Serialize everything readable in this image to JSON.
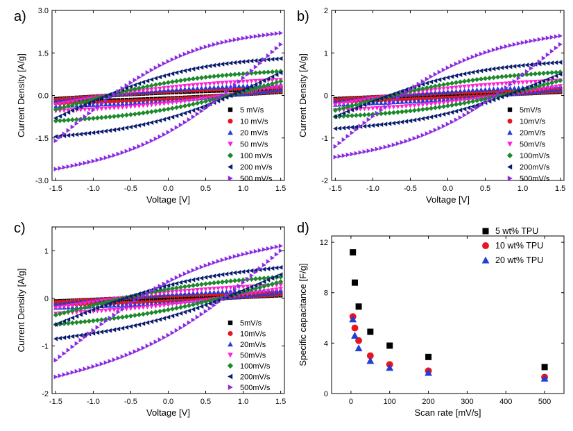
{
  "chart_data": [
    {
      "type": "scatter",
      "panel_label": "a)",
      "title": "",
      "xlabel": "Voltage [V]",
      "ylabel": "Current Density [A/g]",
      "xlim": [
        -1.55,
        1.55
      ],
      "ylim": [
        -3.0,
        3.0
      ],
      "xticks": [
        -1.5,
        -1.0,
        -0.5,
        0.0,
        0.5,
        1.0,
        1.5
      ],
      "xtick_labels": [
        "-1.5",
        "-1.0",
        "-0.5",
        "0.0",
        "0.5",
        "1.0",
        "1.5"
      ],
      "yticks": [
        -3.0,
        -1.5,
        0.0,
        1.5,
        3.0
      ],
      "ytick_labels": [
        "-3.0",
        "-1.5",
        "0.0",
        "1.5",
        "3.0"
      ],
      "legend_position": "bottom-right",
      "series": [
        {
          "name": "5 mV/s",
          "marker": "square",
          "color": "#000000",
          "upper_start": -0.12,
          "upper_end": 0.22,
          "lower_start": -0.22,
          "lower_end": 0.12,
          "slope": 0.05
        },
        {
          "name": "10 mV/s",
          "marker": "circle",
          "color": "#e8141e",
          "upper_start": -0.15,
          "upper_end": 0.28,
          "lower_start": -0.28,
          "lower_end": 0.15,
          "slope": 0.07
        },
        {
          "name": "20 mV/s",
          "marker": "triangle-up",
          "color": "#1f3fd6",
          "upper_start": -0.2,
          "upper_end": 0.38,
          "lower_start": -0.38,
          "lower_end": 0.2,
          "slope": 0.1
        },
        {
          "name": "50 mV/s",
          "marker": "triangle-down",
          "color": "#ff1fd2",
          "upper_start": -0.32,
          "upper_end": 0.55,
          "lower_start": -0.55,
          "lower_end": 0.32,
          "slope": 0.16
        },
        {
          "name": "100 mV/s",
          "marker": "diamond",
          "color": "#1b8a2a",
          "upper_start": -0.5,
          "upper_end": 0.85,
          "lower_start": -0.9,
          "lower_end": 0.5,
          "slope": 0.28
        },
        {
          "name": "200 mV/s",
          "marker": "triangle-left",
          "color": "#0b1d6e",
          "upper_start": -0.8,
          "upper_end": 1.3,
          "lower_start": -1.45,
          "lower_end": 0.8,
          "slope": 0.48
        },
        {
          "name": "500 mV/s",
          "marker": "triangle-right",
          "color": "#8a2be2",
          "upper_start": -1.6,
          "upper_end": 2.2,
          "lower_start": -2.6,
          "lower_end": 1.8,
          "slope": 0.9
        }
      ]
    },
    {
      "type": "scatter",
      "panel_label": "b)",
      "title": "",
      "xlabel": "Voltage [V]",
      "ylabel": "Current Density [A/g]",
      "xlim": [
        -1.55,
        1.55
      ],
      "ylim": [
        -2,
        2
      ],
      "xticks": [
        -1.5,
        -1.0,
        -0.5,
        0.0,
        0.5,
        1.0,
        1.5
      ],
      "xtick_labels": [
        "-1.5",
        "-1.0",
        "-0.5",
        "0.0",
        "0.5",
        "1.0",
        "1.5"
      ],
      "yticks": [
        -2,
        -1,
        0,
        1,
        2
      ],
      "ytick_labels": [
        "-2",
        "-1",
        "0",
        "1",
        "2"
      ],
      "legend_position": "bottom-right",
      "series": [
        {
          "name": "5mV/s",
          "marker": "square",
          "color": "#000000",
          "upper_start": -0.08,
          "upper_end": 0.1,
          "lower_start": -0.1,
          "lower_end": 0.08,
          "slope": 0.02
        },
        {
          "name": "10mV/s",
          "marker": "circle",
          "color": "#e8141e",
          "upper_start": -0.1,
          "upper_end": 0.15,
          "lower_start": -0.15,
          "lower_end": 0.1,
          "slope": 0.03
        },
        {
          "name": "20mV/s",
          "marker": "triangle-up",
          "color": "#1f3fd6",
          "upper_start": -0.14,
          "upper_end": 0.22,
          "lower_start": -0.22,
          "lower_end": 0.14,
          "slope": 0.05
        },
        {
          "name": "50mV/s",
          "marker": "triangle-down",
          "color": "#ff1fd2",
          "upper_start": -0.22,
          "upper_end": 0.35,
          "lower_start": -0.35,
          "lower_end": 0.22,
          "slope": 0.1
        },
        {
          "name": "100mV/s",
          "marker": "diamond",
          "color": "#1b8a2a",
          "upper_start": -0.35,
          "upper_end": 0.55,
          "lower_start": -0.5,
          "lower_end": 0.35,
          "slope": 0.17
        },
        {
          "name": "200mV/s",
          "marker": "triangle-left",
          "color": "#0b1d6e",
          "upper_start": -0.5,
          "upper_end": 0.78,
          "lower_start": -0.78,
          "lower_end": 0.5,
          "slope": 0.28
        },
        {
          "name": "500mV/s",
          "marker": "triangle-right",
          "color": "#8a2be2",
          "upper_start": -1.2,
          "upper_end": 1.4,
          "lower_start": -1.45,
          "lower_end": 1.2,
          "slope": 0.55
        }
      ]
    },
    {
      "type": "scatter",
      "panel_label": "c)",
      "title": "",
      "xlabel": "Voltage [V]",
      "ylabel": "Current Density [A/g]",
      "xlim": [
        -1.55,
        1.55
      ],
      "ylim": [
        -2,
        1.5
      ],
      "xticks": [
        -1.5,
        -1.0,
        -0.5,
        0.0,
        0.5,
        1.0,
        1.5
      ],
      "xtick_labels": [
        "-1.5",
        "-1.0",
        "-0.5",
        "0.0",
        "0.5",
        "1.0",
        "1.5"
      ],
      "yticks": [
        -2,
        -1,
        0,
        1
      ],
      "ytick_labels": [
        "-2",
        "-1",
        "0",
        "1"
      ],
      "legend_position": "bottom-right",
      "series": [
        {
          "name": "5mV/s",
          "marker": "square",
          "color": "#000000",
          "upper_start": -0.06,
          "upper_end": 0.08,
          "lower_start": -0.1,
          "lower_end": 0.06,
          "slope": 0.02
        },
        {
          "name": "10mV/s",
          "marker": "circle",
          "color": "#e8141e",
          "upper_start": -0.08,
          "upper_end": 0.12,
          "lower_start": -0.14,
          "lower_end": 0.08,
          "slope": 0.03
        },
        {
          "name": "20mV/s",
          "marker": "triangle-up",
          "color": "#1f3fd6",
          "upper_start": -0.12,
          "upper_end": 0.18,
          "lower_start": -0.2,
          "lower_end": 0.12,
          "slope": 0.05
        },
        {
          "name": "50mV/s",
          "marker": "triangle-down",
          "color": "#ff1fd2",
          "upper_start": -0.2,
          "upper_end": 0.28,
          "lower_start": -0.32,
          "lower_end": 0.2,
          "slope": 0.08
        },
        {
          "name": "100mV/s",
          "marker": "diamond",
          "color": "#1b8a2a",
          "upper_start": -0.35,
          "upper_end": 0.45,
          "lower_start": -0.55,
          "lower_end": 0.35,
          "slope": 0.14
        },
        {
          "name": "200mV/s",
          "marker": "triangle-left",
          "color": "#0b1d6e",
          "upper_start": -0.55,
          "upper_end": 0.65,
          "lower_start": -0.85,
          "lower_end": 0.5,
          "slope": 0.22
        },
        {
          "name": "500mV/s",
          "marker": "triangle-right",
          "color": "#8a2be2",
          "upper_start": -1.3,
          "upper_end": 1.1,
          "lower_start": -1.65,
          "lower_end": 1.0,
          "slope": 0.45
        }
      ]
    },
    {
      "type": "scatter",
      "panel_label": "d)",
      "title": "",
      "xlabel": "Scan rate [mV/s]",
      "ylabel": "Specific capacitance [F/g]",
      "xlim": [
        -50,
        550
      ],
      "ylim": [
        0,
        12.5
      ],
      "xticks": [
        0,
        100,
        200,
        300,
        400,
        500
      ],
      "xtick_labels": [
        "0",
        "100",
        "200",
        "300",
        "400",
        "500"
      ],
      "yticks": [
        0,
        4,
        8,
        12
      ],
      "ytick_labels": [
        "0",
        "4",
        "8",
        "12"
      ],
      "legend_position": "top-right",
      "x": [
        5,
        10,
        20,
        50,
        100,
        200,
        500
      ],
      "series": [
        {
          "name": "5 wt% TPU",
          "marker": "square",
          "color": "#000000",
          "values": [
            11.2,
            8.8,
            6.9,
            4.9,
            3.8,
            2.9,
            2.1
          ]
        },
        {
          "name": "10 wt% TPU",
          "marker": "circle",
          "color": "#e8141e",
          "values": [
            6.1,
            5.2,
            4.2,
            3.0,
            2.3,
            1.8,
            1.3
          ]
        },
        {
          "name": "20 wt% TPU",
          "marker": "triangle-up",
          "color": "#1f3fd6",
          "values": [
            5.9,
            4.6,
            3.6,
            2.6,
            2.05,
            1.65,
            1.2
          ]
        }
      ]
    }
  ]
}
